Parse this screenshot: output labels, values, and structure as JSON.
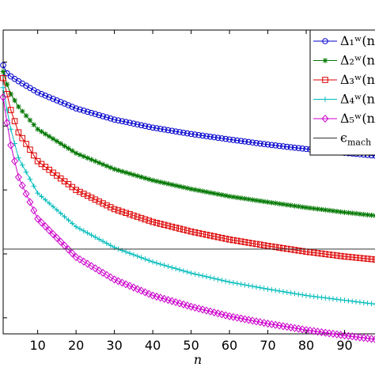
{
  "chart_data": {
    "type": "line",
    "title": "",
    "xlabel": "n",
    "ylabel": "",
    "xlim": [
      1,
      100
    ],
    "ylim": [
      -10.5,
      -1
    ],
    "xticks": [
      10,
      20,
      30,
      40,
      50,
      60,
      70,
      80,
      90
    ],
    "yscale": "linear",
    "grid": false,
    "legend_position": "top-right",
    "x": [
      1,
      2,
      3,
      5,
      10,
      20,
      30,
      40,
      50,
      60,
      70,
      80,
      90,
      100
    ],
    "series": [
      {
        "legend_label": "Δ₁ʷ(n",
        "color": "#0000cc",
        "marker": "circle",
        "values": [
          -2.1,
          -2.35,
          -2.45,
          -2.6,
          -2.95,
          -3.45,
          -3.8,
          -4.05,
          -4.25,
          -4.42,
          -4.58,
          -4.72,
          -4.84,
          -4.95
        ]
      },
      {
        "legend_label": "Δ₂ʷ(n",
        "color": "#007700",
        "marker": "star",
        "values": [
          -2.3,
          -2.7,
          -3.0,
          -3.4,
          -4.1,
          -4.85,
          -5.35,
          -5.7,
          -5.97,
          -6.2,
          -6.38,
          -6.55,
          -6.7,
          -6.83
        ]
      },
      {
        "legend_label": "Δ₃ʷ(n",
        "color": "#dd0000",
        "marker": "square",
        "values": [
          -2.5,
          -3.0,
          -3.5,
          -4.2,
          -5.1,
          -6.0,
          -6.6,
          -7.0,
          -7.3,
          -7.55,
          -7.75,
          -7.93,
          -8.08,
          -8.2
        ]
      },
      {
        "legend_label": "Δ₄ʷ(n",
        "color": "#00bbbb",
        "marker": "plus",
        "values": [
          -2.8,
          -3.5,
          -4.1,
          -5.0,
          -6.1,
          -7.15,
          -7.8,
          -8.25,
          -8.6,
          -8.88,
          -9.1,
          -9.3,
          -9.45,
          -9.6
        ]
      },
      {
        "legend_label": "Δ₅ʷ(n",
        "color": "#cc00cc",
        "marker": "diamond",
        "values": [
          -3.1,
          -3.9,
          -4.6,
          -5.6,
          -6.9,
          -8.1,
          -8.8,
          -9.3,
          -9.65,
          -9.95,
          -10.18,
          -10.38,
          -10.55,
          -10.7
        ]
      }
    ],
    "reference_line": {
      "legend_label": "ϵ",
      "legend_subscript": "mach",
      "color": "#333333",
      "value": -7.85
    }
  }
}
